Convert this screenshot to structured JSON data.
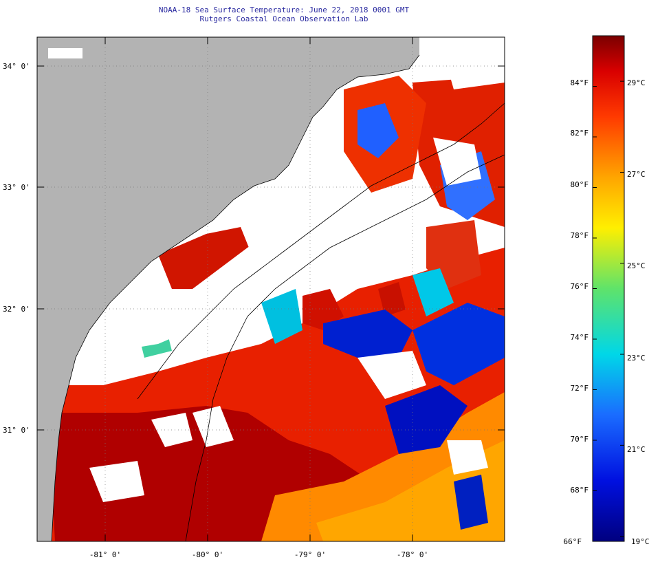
{
  "title_line1": "NOAA-18 Sea Surface Temperature:  June 22, 2018 0001 GMT",
  "title_line2": "Rutgers Coastal Ocean Observation Lab",
  "map": {
    "lat_labels": [
      "34° 0'",
      "33° 0'",
      "32° 0'",
      "31° 0'"
    ],
    "lon_labels": [
      "-81° 0'",
      "-80° 0'",
      "-79° 0'",
      "-78° 0'"
    ],
    "colors": {
      "land": "#b3b3b3",
      "cloud": "#ffffff",
      "warmest": "#8b0000",
      "warm": "#e81c00",
      "mid": "#ffd200",
      "cool": "#00d7e8",
      "coldest": "#00007f"
    }
  },
  "colorbar": {
    "f_labels": [
      "84°F",
      "82°F",
      "80°F",
      "78°F",
      "76°F",
      "74°F",
      "72°F",
      "70°F",
      "68°F",
      "66°F"
    ],
    "c_labels": [
      "29°C",
      "27°C",
      "25°C",
      "23°C",
      "21°C",
      "19°C"
    ],
    "f_min": 66,
    "f_max": 86
  }
}
